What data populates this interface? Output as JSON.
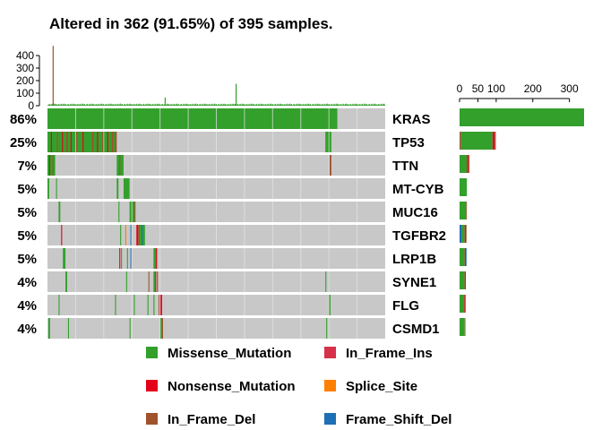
{
  "chart_data": {
    "type": "oncoplot",
    "title": "Altered in 362 (91.65%) of 395 samples.",
    "n_samples": 395,
    "colors": {
      "Missense_Mutation": "#33a02c",
      "In_Frame_Ins": "#d6304a",
      "Nonsense_Mutation": "#e3001b",
      "Splice_Site": "#ff7f00",
      "In_Frame_Del": "#a0522d",
      "Frame_Shift_Del": "#1f6fb4",
      "background": "#c8c8c8"
    },
    "top_bar": {
      "ylim": [
        0,
        450
      ],
      "ticks": [
        0,
        100,
        200,
        300,
        400
      ],
      "peaks": [
        {
          "sample": 6,
          "value": 480
        },
        {
          "sample": 137,
          "value": 65
        },
        {
          "sample": 220,
          "value": 175
        }
      ],
      "baseline_value": 12
    },
    "side_bar": {
      "xlim": [
        0,
        340
      ],
      "ticks": [
        0,
        50,
        100,
        200,
        300
      ]
    },
    "genes": [
      {
        "name": "KRAS",
        "pct": "86%",
        "count": 340,
        "side": [
          {
            "type": "Missense_Mutation",
            "value": 340
          }
        ],
        "segments": [
          {
            "start": 0,
            "end": 339,
            "type": "Missense_Mutation"
          }
        ]
      },
      {
        "name": "TP53",
        "pct": "25%",
        "count": 99,
        "side": [
          {
            "type": "In_Frame_Del",
            "value": 4
          },
          {
            "type": "Missense_Mutation",
            "value": 86
          },
          {
            "type": "Nonsense_Mutation",
            "value": 6
          },
          {
            "type": "In_Frame_Del",
            "value": 3
          }
        ],
        "segments": [
          {
            "start": 0,
            "end": 80,
            "type": "Missense_Mutation"
          },
          {
            "start": 4,
            "end": 5,
            "type": "Nonsense_Mutation"
          },
          {
            "start": 11,
            "end": 12,
            "type": "In_Frame_Del"
          },
          {
            "start": 17,
            "end": 18,
            "type": "Nonsense_Mutation"
          },
          {
            "start": 22,
            "end": 24,
            "type": "In_Frame_Del"
          },
          {
            "start": 27,
            "end": 28,
            "type": "Nonsense_Mutation"
          },
          {
            "start": 33,
            "end": 35,
            "type": "In_Frame_Del"
          },
          {
            "start": 41,
            "end": 42,
            "type": "Nonsense_Mutation"
          },
          {
            "start": 52,
            "end": 54,
            "type": "In_Frame_Del"
          },
          {
            "start": 58,
            "end": 59,
            "type": "Nonsense_Mutation"
          },
          {
            "start": 64,
            "end": 66,
            "type": "In_Frame_Del"
          },
          {
            "start": 70,
            "end": 71,
            "type": "Nonsense_Mutation"
          },
          {
            "start": 75,
            "end": 77,
            "type": "In_Frame_Del"
          },
          {
            "start": 79,
            "end": 81,
            "type": "In_Frame_Del"
          },
          {
            "start": 325,
            "end": 332,
            "type": "Missense_Mutation"
          }
        ]
      },
      {
        "name": "TTN",
        "pct": "7%",
        "count": 27,
        "side": [
          {
            "type": "Missense_Mutation",
            "value": 20
          },
          {
            "type": "Nonsense_Mutation",
            "value": 4
          },
          {
            "type": "In_Frame_Del",
            "value": 3
          }
        ],
        "segments": [
          {
            "start": 0,
            "end": 9,
            "type": "Missense_Mutation"
          },
          {
            "start": 2,
            "end": 3,
            "type": "Nonsense_Mutation"
          },
          {
            "start": 6,
            "end": 7,
            "type": "In_Frame_Del"
          },
          {
            "start": 81,
            "end": 89,
            "type": "Missense_Mutation"
          },
          {
            "start": 84,
            "end": 85,
            "type": "In_Frame_Del"
          },
          {
            "start": 330,
            "end": 332,
            "type": "In_Frame_Del"
          }
        ]
      },
      {
        "name": "MT-CYB",
        "pct": "5%",
        "count": 20,
        "side": [
          {
            "type": "Missense_Mutation",
            "value": 20
          }
        ],
        "segments": [
          {
            "start": 0,
            "end": 2,
            "type": "Missense_Mutation"
          },
          {
            "start": 10,
            "end": 11,
            "type": "Missense_Mutation"
          },
          {
            "start": 81,
            "end": 83,
            "type": "Missense_Mutation"
          },
          {
            "start": 89,
            "end": 96,
            "type": "Missense_Mutation"
          }
        ]
      },
      {
        "name": "MUC16",
        "pct": "5%",
        "count": 20,
        "side": [
          {
            "type": "Missense_Mutation",
            "value": 18
          },
          {
            "type": "In_Frame_Del",
            "value": 2
          }
        ],
        "segments": [
          {
            "start": 13,
            "end": 15,
            "type": "Missense_Mutation"
          },
          {
            "start": 83,
            "end": 84,
            "type": "Missense_Mutation"
          },
          {
            "start": 96,
            "end": 103,
            "type": "Missense_Mutation"
          },
          {
            "start": 101,
            "end": 102,
            "type": "In_Frame_Del"
          }
        ]
      },
      {
        "name": "TGFBR2",
        "pct": "5%",
        "count": 19,
        "side": [
          {
            "type": "Frame_Shift_Del",
            "value": 5
          },
          {
            "type": "Missense_Mutation",
            "value": 9
          },
          {
            "type": "Nonsense_Mutation",
            "value": 3
          },
          {
            "type": "In_Frame_Del",
            "value": 2
          }
        ],
        "segments": [
          {
            "start": 16,
            "end": 17,
            "type": "Nonsense_Mutation"
          },
          {
            "start": 85,
            "end": 86,
            "type": "Missense_Mutation"
          },
          {
            "start": 91,
            "end": 92,
            "type": "Splice_Site"
          },
          {
            "start": 97,
            "end": 98,
            "type": "Frame_Shift_Del"
          },
          {
            "start": 104,
            "end": 106,
            "type": "Nonsense_Mutation"
          },
          {
            "start": 106,
            "end": 108,
            "type": "In_Frame_Del"
          },
          {
            "start": 108,
            "end": 110,
            "type": "Missense_Mutation"
          },
          {
            "start": 110,
            "end": 111,
            "type": "Frame_Shift_Del"
          },
          {
            "start": 111,
            "end": 114,
            "type": "Missense_Mutation"
          }
        ]
      },
      {
        "name": "LRP1B",
        "pct": "5%",
        "count": 19,
        "side": [
          {
            "type": "Missense_Mutation",
            "value": 14
          },
          {
            "type": "Nonsense_Mutation",
            "value": 3
          },
          {
            "type": "Frame_Shift_Del",
            "value": 2
          }
        ],
        "segments": [
          {
            "start": 18,
            "end": 21,
            "type": "Missense_Mutation"
          },
          {
            "start": 84,
            "end": 85,
            "type": "Nonsense_Mutation"
          },
          {
            "start": 86,
            "end": 87,
            "type": "Missense_Mutation"
          },
          {
            "start": 93,
            "end": 94,
            "type": "Missense_Mutation"
          },
          {
            "start": 97,
            "end": 98,
            "type": "Frame_Shift_Del"
          },
          {
            "start": 124,
            "end": 128,
            "type": "Missense_Mutation"
          },
          {
            "start": 127,
            "end": 128,
            "type": "Nonsense_Mutation"
          }
        ]
      },
      {
        "name": "SYNE1",
        "pct": "4%",
        "count": 17,
        "side": [
          {
            "type": "Missense_Mutation",
            "value": 14
          },
          {
            "type": "Nonsense_Mutation",
            "value": 3
          }
        ],
        "segments": [
          {
            "start": 21,
            "end": 23,
            "type": "Missense_Mutation"
          },
          {
            "start": 92,
            "end": 93,
            "type": "Missense_Mutation"
          },
          {
            "start": 118,
            "end": 119,
            "type": "In_Frame_Del"
          },
          {
            "start": 124,
            "end": 126,
            "type": "Missense_Mutation"
          },
          {
            "start": 126,
            "end": 127,
            "type": "Nonsense_Mutation"
          },
          {
            "start": 128,
            "end": 129,
            "type": "In_Frame_Del"
          },
          {
            "start": 325,
            "end": 326,
            "type": "Missense_Mutation"
          }
        ]
      },
      {
        "name": "FLG",
        "pct": "4%",
        "count": 17,
        "side": [
          {
            "type": "Missense_Mutation",
            "value": 13
          },
          {
            "type": "Nonsense_Mutation",
            "value": 2
          },
          {
            "type": "In_Frame_Del",
            "value": 2
          }
        ],
        "segments": [
          {
            "start": 13,
            "end": 14,
            "type": "Missense_Mutation"
          },
          {
            "start": 79,
            "end": 80,
            "type": "Missense_Mutation"
          },
          {
            "start": 101,
            "end": 102,
            "type": "Missense_Mutation"
          },
          {
            "start": 117,
            "end": 118,
            "type": "Missense_Mutation"
          },
          {
            "start": 124,
            "end": 125,
            "type": "Missense_Mutation"
          },
          {
            "start": 130,
            "end": 131,
            "type": "In_Frame_Del"
          },
          {
            "start": 132,
            "end": 134,
            "type": "Nonsense_Mutation"
          },
          {
            "start": 329,
            "end": 331,
            "type": "Missense_Mutation"
          }
        ]
      },
      {
        "name": "CSMD1",
        "pct": "4%",
        "count": 16,
        "side": [
          {
            "type": "Missense_Mutation",
            "value": 14
          },
          {
            "type": "In_Frame_Del",
            "value": 2
          }
        ],
        "segments": [
          {
            "start": 1,
            "end": 3,
            "type": "Missense_Mutation"
          },
          {
            "start": 24,
            "end": 25,
            "type": "Missense_Mutation"
          },
          {
            "start": 96,
            "end": 97,
            "type": "Missense_Mutation"
          },
          {
            "start": 132,
            "end": 135,
            "type": "Missense_Mutation"
          },
          {
            "start": 134,
            "end": 135,
            "type": "In_Frame_Del"
          },
          {
            "start": 326,
            "end": 327,
            "type": "Missense_Mutation"
          }
        ]
      }
    ],
    "legend": [
      {
        "label": "Missense_Mutation",
        "type": "Missense_Mutation"
      },
      {
        "label": "In_Frame_Ins",
        "type": "In_Frame_Ins"
      },
      {
        "label": "Nonsense_Mutation",
        "type": "Nonsense_Mutation"
      },
      {
        "label": "Splice_Site",
        "type": "Splice_Site"
      },
      {
        "label": "In_Frame_Del",
        "type": "In_Frame_Del"
      },
      {
        "label": "Frame_Shift_Del",
        "type": "Frame_Shift_Del"
      }
    ]
  }
}
